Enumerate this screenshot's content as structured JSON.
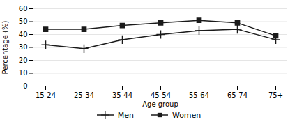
{
  "chart_data": {
    "type": "line",
    "categories": [
      "15-24",
      "25-34",
      "35-44",
      "45-54",
      "55-64",
      "65-74",
      "75+"
    ],
    "series": [
      {
        "name": "Men",
        "color": "#1a1a1a",
        "marker": "plus",
        "values": [
          32,
          29,
          36,
          40,
          43,
          44,
          36
        ]
      },
      {
        "name": "Women",
        "color": "#1a1a1a",
        "marker": "square",
        "values": [
          44,
          44,
          47,
          49,
          51,
          49,
          39
        ]
      }
    ],
    "xlabel": "Age group",
    "ylabel": "Percentage (%)",
    "ylim": [
      0,
      60
    ],
    "yticks": [
      0,
      10,
      20,
      30,
      40,
      50,
      60
    ],
    "grid": true,
    "legend": "bottom"
  }
}
